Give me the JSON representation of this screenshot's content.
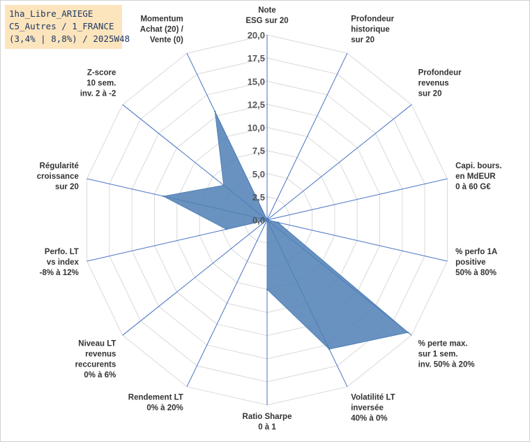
{
  "title_box": {
    "line1": "1ha_Libre_ARIEGE",
    "line2": "C5_Autres / 1_FRANCE",
    "line3": "(3,4% | 8,8%) / 2025W48"
  },
  "colors": {
    "fill": "#4f7fb5",
    "grid": "#d9d9d9",
    "spoke": "#4472c4"
  },
  "chart_data": {
    "type": "radar",
    "rmin": 0,
    "rmax": 20,
    "ticks": [
      "0,0",
      "2,5",
      "5,0",
      "7,5",
      "10,0",
      "12,5",
      "15,0",
      "17,5",
      "20,0"
    ],
    "categories": [
      [
        "Note",
        "ESG sur 20"
      ],
      [
        "Profondeur",
        "historique",
        "sur 20"
      ],
      [
        "Profondeur",
        "revenus",
        "sur 20"
      ],
      [
        "Capi. bours.",
        "en MdEUR",
        "0 à 60 G€"
      ],
      [
        "% perfo 1A",
        "positive",
        "50% à 80%"
      ],
      [
        "% perte max.",
        "sur 1 sem.",
        "inv. 50% à 20%"
      ],
      [
        "Volatilité LT",
        "inversée",
        "40% à 0%"
      ],
      [
        "Ratio Sharpe",
        "0 à 1"
      ],
      [
        "Rendement LT",
        "0% à 20%"
      ],
      [
        "Niveau LT",
        "revenus",
        "reccurents",
        "0% à 6%"
      ],
      [
        "Perfo. LT",
        "vs index",
        "-8% à 12%"
      ],
      [
        "Régularité",
        "croissance",
        "sur 20"
      ],
      [
        "Z-score",
        "10 sem.",
        "inv. 2 à -2"
      ],
      [
        "Momentum",
        "Achat (20) /",
        "Vente (0)"
      ]
    ],
    "values": [
      0,
      0,
      0,
      0,
      1.2,
      19.5,
      15.5,
      7.5,
      0,
      0,
      4.5,
      11.5,
      6.0,
      13.0
    ],
    "grid": true,
    "legend": "none"
  }
}
